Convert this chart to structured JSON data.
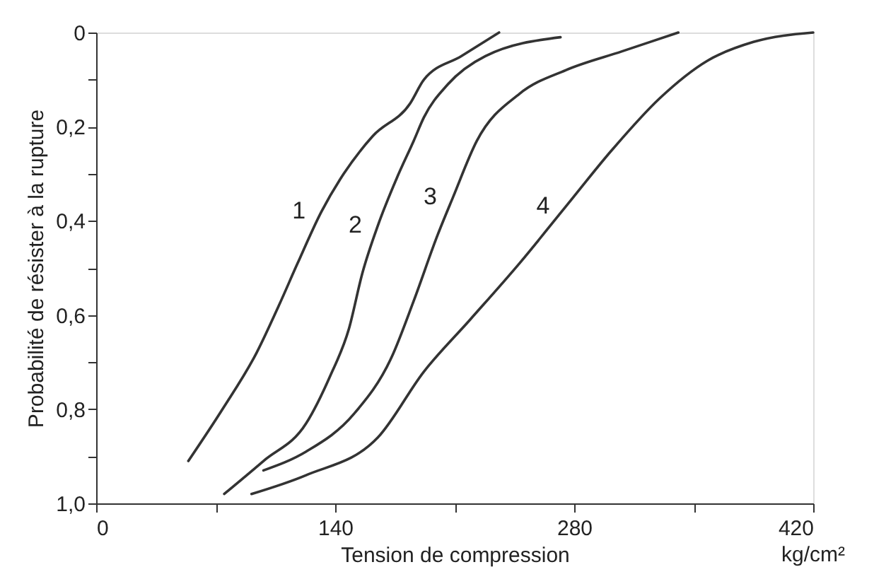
{
  "chart_data": {
    "type": "line",
    "xlabel": "Tension de compression",
    "ylabel": "Probabilité de résister à la rupture",
    "annotations": [
      "kg/cm²"
    ],
    "xlim": [
      0,
      420
    ],
    "xticks": [
      0,
      {
        "value": 70,
        "label": null
      },
      140,
      {
        "value": 210,
        "label": null
      },
      280,
      {
        "value": 350,
        "label": null
      },
      420
    ],
    "ylim": [
      1.0,
      0
    ],
    "yticks": [
      0,
      {
        "value": 0.1,
        "label": null
      },
      {
        "value": 0.2,
        "label": "0,2"
      },
      {
        "value": 0.3,
        "label": null
      },
      {
        "value": 0.4,
        "label": "0,4"
      },
      {
        "value": 0.5,
        "label": null
      },
      {
        "value": 0.6,
        "label": "0,6"
      },
      {
        "value": 0.7,
        "label": null
      },
      {
        "value": 0.8,
        "label": "0,8"
      },
      {
        "value": 0.9,
        "label": null
      },
      {
        "value": 1.0,
        "label": "1,0"
      }
    ],
    "grid": false,
    "marker": "none",
    "line_style": "solid",
    "series": [
      {
        "name": "1",
        "color": "#333333",
        "x": [
          54,
          74,
          94,
          107,
          118,
          132,
          145,
          162,
          184,
          192,
          214,
          236
        ],
        "values": [
          0.91,
          0.8,
          0.68,
          0.58,
          0.49,
          0.38,
          0.3,
          0.22,
          0.15,
          0.1,
          0.05,
          0.0
        ]
      },
      {
        "name": "2",
        "color": "#333333",
        "x": [
          75,
          98,
          123,
          137,
          148,
          156,
          165,
          176,
          186,
          192,
          206,
          228,
          272
        ],
        "values": [
          0.98,
          0.91,
          0.83,
          0.73,
          0.63,
          0.51,
          0.41,
          0.31,
          0.23,
          0.18,
          0.11,
          0.05,
          0.01
        ]
      },
      {
        "name": "3",
        "color": "#333333",
        "x": [
          98,
          123,
          151,
          173,
          186,
          200,
          209,
          223,
          248,
          275,
          308,
          341
        ],
        "values": [
          0.93,
          0.89,
          0.81,
          0.69,
          0.57,
          0.43,
          0.35,
          0.23,
          0.13,
          0.08,
          0.04,
          0.0
        ]
      },
      {
        "name": "4",
        "color": "#333333",
        "x": [
          91,
          123,
          165,
          192,
          219,
          248,
          275,
          302,
          330,
          358,
          385,
          420
        ],
        "values": [
          0.98,
          0.94,
          0.86,
          0.72,
          0.61,
          0.49,
          0.37,
          0.25,
          0.14,
          0.06,
          0.02,
          0.0
        ]
      }
    ]
  }
}
